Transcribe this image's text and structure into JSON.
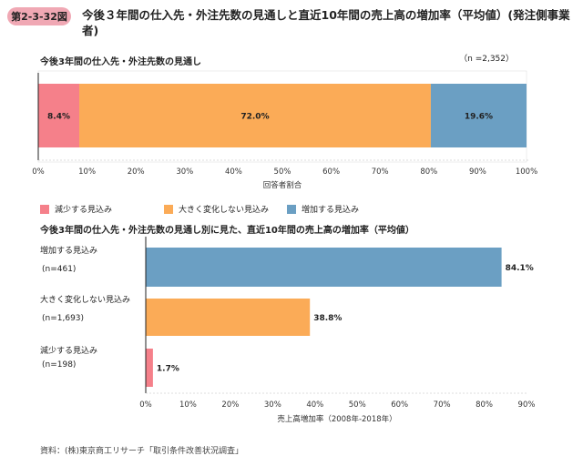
{
  "figure": {
    "number": "第2-3-32図",
    "title": "今後３年間の仕入先・外注先数の見通しと直近10年間の売上高の増加率（平均値）(発注側事業者)"
  },
  "source_note": "資料：(株)東京商工リサーチ「取引条件改善状況調査」",
  "colors": {
    "decrease": "#f5808a",
    "nochange": "#fbab57",
    "increase": "#6b9fc3",
    "badge": "#f0a8b4"
  },
  "chart_data": [
    {
      "type": "bar",
      "orientation": "horizontal-stacked",
      "title": "今後3年間の仕入先・外注先数の見通し",
      "n_note": "（n =2,352）",
      "xlabel": "回答者割合",
      "xlim": [
        0,
        100
      ],
      "x_ticks": [
        "0%",
        "10%",
        "20%",
        "30%",
        "40%",
        "50%",
        "60%",
        "70%",
        "80%",
        "90%",
        "100%"
      ],
      "series": [
        {
          "name": "減少する見込み",
          "value": 8.4,
          "label": "8.4%",
          "color": "#f5808a"
        },
        {
          "name": "大きく変化しない見込み",
          "value": 72.0,
          "label": "72.0%",
          "color": "#fbab57"
        },
        {
          "name": "増加する見込み",
          "value": 19.6,
          "label": "19.6%",
          "color": "#6b9fc3"
        }
      ],
      "legend_position": "bottom-left",
      "grid": false
    },
    {
      "type": "bar",
      "orientation": "horizontal",
      "title": "今後3年間の仕入先・外注先数の見通し別に見た、直近10年間の売上高の増加率（平均値）",
      "xlabel": "売上高増加率（2008年-2018年）",
      "xlim": [
        0,
        90
      ],
      "x_ticks": [
        "0%",
        "10%",
        "20%",
        "30%",
        "40%",
        "50%",
        "60%",
        "70%",
        "80%",
        "90%"
      ],
      "categories": [
        {
          "name": "増加する見込み",
          "n": "(n=461)",
          "value": 84.1,
          "label": "84.1%",
          "color": "#6b9fc3"
        },
        {
          "name": "大きく変化しない見込み",
          "n": "(n=1,693)",
          "value": 38.8,
          "label": "38.8%",
          "color": "#fbab57"
        },
        {
          "name": "減少する見込み",
          "n": "(n=198)",
          "value": 1.7,
          "label": "1.7%",
          "color": "#f5808a"
        }
      ],
      "grid": false
    }
  ]
}
